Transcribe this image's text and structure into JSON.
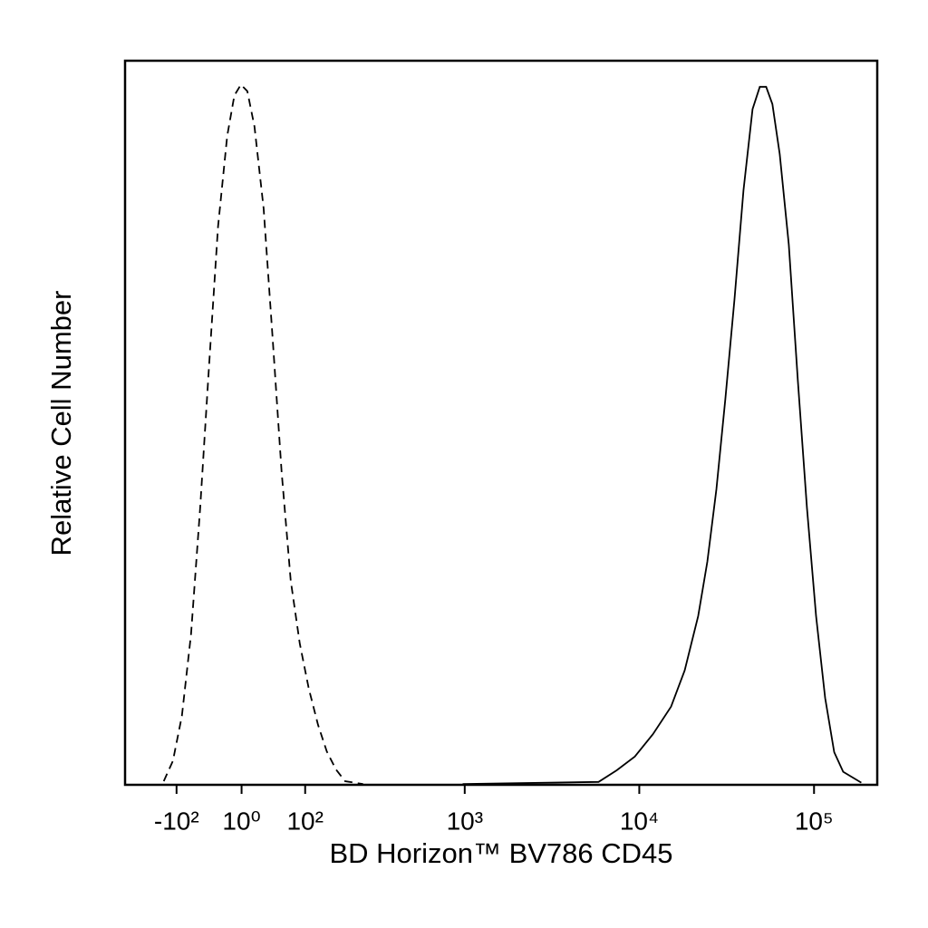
{
  "chart_data": {
    "type": "line",
    "x_label": "BD Horizon™ BV786 CD45",
    "y_label": "Relative Cell Number",
    "xscale": "biexponential",
    "xlim": [
      -230,
      230000
    ],
    "ylim": [
      0,
      100
    ],
    "xticks": [
      {
        "value": -100,
        "label": "-10²"
      },
      {
        "value": 1,
        "label": "10⁰"
      },
      {
        "value": 100,
        "label": "10²"
      },
      {
        "value": 1000,
        "label": "10³"
      },
      {
        "value": 10000,
        "label": "10⁴"
      },
      {
        "value": 100000,
        "label": "10⁵"
      }
    ],
    "series": [
      {
        "color": "#000000",
        "line_style": "dashed",
        "x": [
          -126,
          -107,
          -90,
          -74,
          -59,
          -45,
          -32,
          -19,
          -9,
          0,
          9,
          19,
          32,
          45,
          59,
          74,
          90,
          107,
          126,
          146,
          169,
          194,
          252
        ],
        "values": [
          0.5,
          3.3,
          9.5,
          20.8,
          38.3,
          58.3,
          77.1,
          89.6,
          95.2,
          96.7,
          95.8,
          90.9,
          79.6,
          62.1,
          43.3,
          28.2,
          19.5,
          13.3,
          8.3,
          4.6,
          2.1,
          0.5,
          0.1
        ]
      },
      {
        "color": "#000000",
        "line_style": "solid",
        "x": [
          973,
          5850,
          7430,
          9430,
          11970,
          15200,
          18180,
          21740,
          24520,
          27620,
          31100,
          35070,
          39480,
          44470,
          48930,
          53180,
          57800,
          63630,
          71720,
          80850,
          91090,
          102700,
          115700,
          130400,
          146800,
          186400
        ],
        "values": [
          0.1,
          0.4,
          2.0,
          3.9,
          7.0,
          10.8,
          15.8,
          23.3,
          30.8,
          40.8,
          53.3,
          67.1,
          82.1,
          93.3,
          96.4,
          96.4,
          94.0,
          87.1,
          74.6,
          55.8,
          38.3,
          23.3,
          12.0,
          4.5,
          1.8,
          0.3
        ]
      }
    ]
  }
}
